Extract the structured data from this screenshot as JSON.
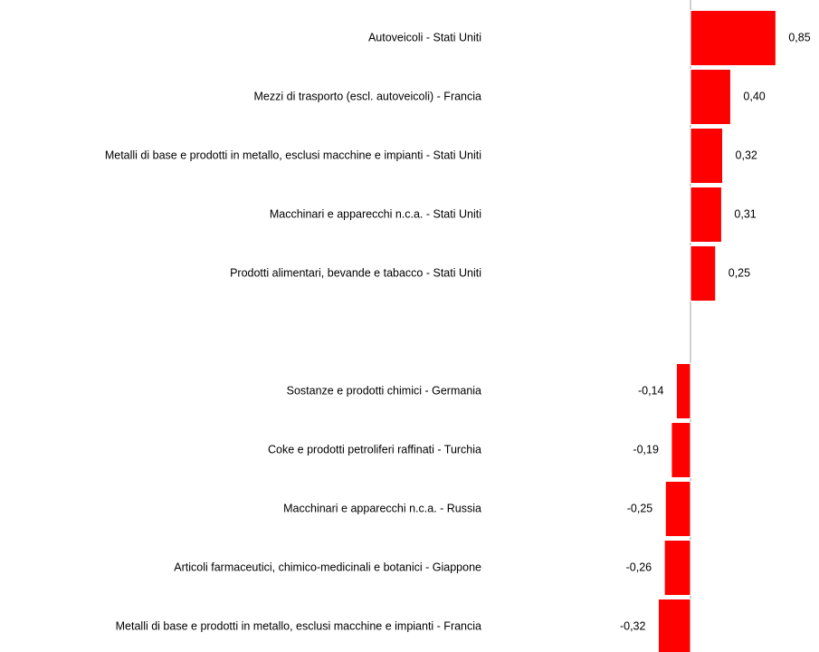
{
  "chart_data": {
    "type": "barh",
    "categories": [
      "Autoveicoli - Stati Uniti",
      "Mezzi di trasporto (escl. autoveicoli) - Francia",
      "Metalli di base e prodotti in metallo, esclusi macchine e impianti - Stati Uniti",
      "Macchinari e apparecchi n.c.a. - Stati Uniti",
      "Prodotti alimentari, bevande e tabacco - Stati Uniti",
      null,
      "Sostanze e prodotti chimici - Germania",
      "Coke e prodotti petroliferi raffinati - Turchia",
      "Macchinari e apparecchi n.c.a. - Russia",
      "Articoli farmaceutici, chimico-medicinali e botanici - Giappone",
      "Metalli di base e prodotti in metallo, esclusi macchine e impianti - Francia"
    ],
    "values": [
      0.85,
      0.4,
      0.32,
      0.31,
      0.25,
      null,
      -0.14,
      -0.19,
      -0.25,
      -0.26,
      -0.32
    ],
    "value_labels": [
      "0,85",
      "0,40",
      "0,32",
      "0,31",
      "0,25",
      null,
      "-0,14",
      "-0,19",
      "-0,25",
      "-0,26",
      "-0,32"
    ],
    "color": "#ff0000",
    "xlim": [
      -0.4,
      0.9
    ]
  }
}
